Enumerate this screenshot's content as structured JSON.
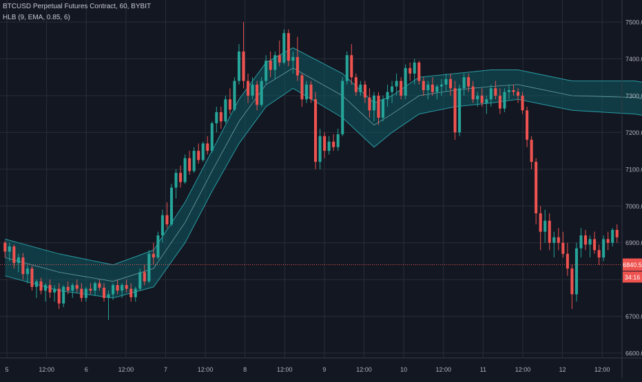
{
  "legend": {
    "symbol_line": "BTCUSD Perpetual Futures Contract, 60, BYBIT",
    "indicator_line": "HLB (9, EMA, 0.85, 6)"
  },
  "colors": {
    "background": "#131722",
    "grid": "#2a2e39",
    "up": "#26a69a",
    "down": "#ef5350",
    "band_fill": "#0e5a63",
    "band_line": "#2a9ca3",
    "mid_line": "#7fb9bd",
    "axis_text": "#b2b5be",
    "label_text": "#ffffff"
  },
  "chart_data": {
    "type": "candlestick",
    "title": "BTCUSD Perpetual Futures Contract, 60, BYBIT",
    "indicator": "HLB (9, EMA, 0.85, 6)",
    "timeframe": "60",
    "x_tick_labels": [
      "5",
      "12:00",
      "6",
      "12:00",
      "7",
      "12:00",
      "8",
      "12:00",
      "9",
      "12:00",
      "10",
      "12:00",
      "11",
      "12:00",
      "12",
      "12:00"
    ],
    "y_tick_labels": [
      "7500.0",
      "7400.0",
      "7300.0",
      "7200.0",
      "7100.0",
      "7000.0",
      "6900.0",
      "6800.0",
      "6700.0",
      "6600.0"
    ],
    "ylim": [
      6587,
      7560
    ],
    "grid": true,
    "last_price": "6840.5",
    "countdown": "34:16",
    "band_upper": [
      [
        0,
        6910
      ],
      [
        12,
        6870
      ],
      [
        24,
        6840
      ],
      [
        33,
        6880
      ],
      [
        40,
        7010
      ],
      [
        46,
        7150
      ],
      [
        52,
        7290
      ],
      [
        58,
        7390
      ],
      [
        64,
        7430
      ],
      [
        75,
        7360
      ],
      [
        82,
        7280
      ],
      [
        86,
        7300
      ],
      [
        92,
        7350
      ],
      [
        100,
        7360
      ],
      [
        108,
        7370
      ],
      [
        114,
        7370
      ],
      [
        126,
        7340
      ],
      [
        140,
        7340
      ],
      [
        150,
        7320
      ],
      [
        154,
        7270
      ],
      [
        164,
        7080
      ],
      [
        172,
        6960
      ],
      [
        180,
        6935
      ],
      [
        190,
        6930
      ],
      [
        200,
        6900
      ],
      [
        210,
        6900
      ],
      [
        221,
        6900
      ]
    ],
    "band_lower": [
      [
        0,
        6810
      ],
      [
        12,
        6770
      ],
      [
        24,
        6750
      ],
      [
        33,
        6780
      ],
      [
        40,
        6900
      ],
      [
        46,
        7040
      ],
      [
        52,
        7170
      ],
      [
        58,
        7270
      ],
      [
        64,
        7320
      ],
      [
        75,
        7240
      ],
      [
        82,
        7160
      ],
      [
        86,
        7200
      ],
      [
        92,
        7250
      ],
      [
        100,
        7270
      ],
      [
        108,
        7280
      ],
      [
        114,
        7290
      ],
      [
        126,
        7260
      ],
      [
        140,
        7250
      ],
      [
        150,
        7230
      ],
      [
        154,
        7170
      ],
      [
        164,
        6980
      ],
      [
        172,
        6860
      ],
      [
        180,
        6840
      ],
      [
        190,
        6840
      ],
      [
        200,
        6810
      ],
      [
        210,
        6810
      ],
      [
        221,
        6820
      ]
    ],
    "candles": [
      [
        6900,
        6905,
        6860,
        6876
      ],
      [
        6876,
        6900,
        6850,
        6890
      ],
      [
        6890,
        6895,
        6830,
        6845
      ],
      [
        6845,
        6870,
        6820,
        6860
      ],
      [
        6860,
        6872,
        6800,
        6815
      ],
      [
        6815,
        6840,
        6790,
        6830
      ],
      [
        6830,
        6838,
        6770,
        6780
      ],
      [
        6780,
        6800,
        6750,
        6795
      ],
      [
        6795,
        6805,
        6760,
        6770
      ],
      [
        6770,
        6790,
        6740,
        6785
      ],
      [
        6785,
        6800,
        6750,
        6765
      ],
      [
        6765,
        6785,
        6740,
        6775
      ],
      [
        6775,
        6790,
        6720,
        6735
      ],
      [
        6735,
        6785,
        6725,
        6780
      ],
      [
        6780,
        6795,
        6760,
        6770
      ],
      [
        6770,
        6790,
        6750,
        6785
      ],
      [
        6785,
        6800,
        6765,
        6775
      ],
      [
        6775,
        6790,
        6740,
        6750
      ],
      [
        6750,
        6780,
        6740,
        6775
      ],
      [
        6775,
        6790,
        6760,
        6770
      ],
      [
        6770,
        6795,
        6755,
        6790
      ],
      [
        6790,
        6800,
        6770,
        6778
      ],
      [
        6778,
        6790,
        6740,
        6750
      ],
      [
        6750,
        6770,
        6690,
        6760
      ],
      [
        6760,
        6790,
        6745,
        6785
      ],
      [
        6785,
        6800,
        6760,
        6770
      ],
      [
        6770,
        6790,
        6750,
        6785
      ],
      [
        6785,
        6800,
        6765,
        6775
      ],
      [
        6775,
        6790,
        6740,
        6752
      ],
      [
        6752,
        6780,
        6740,
        6775
      ],
      [
        6775,
        6830,
        6770,
        6820
      ],
      [
        6820,
        6840,
        6785,
        6795
      ],
      [
        6795,
        6880,
        6790,
        6870
      ],
      [
        6870,
        6900,
        6840,
        6860
      ],
      [
        6860,
        6930,
        6855,
        6920
      ],
      [
        6920,
        6990,
        6900,
        6975
      ],
      [
        6975,
        7010,
        6940,
        6950
      ],
      [
        6950,
        7060,
        6945,
        7050
      ],
      [
        7050,
        7100,
        7020,
        7090
      ],
      [
        7090,
        7110,
        7050,
        7065
      ],
      [
        7065,
        7140,
        7060,
        7130
      ],
      [
        7130,
        7150,
        7085,
        7095
      ],
      [
        7095,
        7160,
        7090,
        7150
      ],
      [
        7150,
        7170,
        7115,
        7125
      ],
      [
        7125,
        7175,
        7120,
        7170
      ],
      [
        7170,
        7190,
        7140,
        7150
      ],
      [
        7150,
        7230,
        7145,
        7225
      ],
      [
        7225,
        7270,
        7200,
        7255
      ],
      [
        7255,
        7270,
        7210,
        7230
      ],
      [
        7230,
        7300,
        7225,
        7290
      ],
      [
        7290,
        7320,
        7250,
        7262
      ],
      [
        7262,
        7350,
        7258,
        7340
      ],
      [
        7340,
        7440,
        7330,
        7420
      ],
      [
        7420,
        7500,
        7320,
        7340
      ],
      [
        7340,
        7360,
        7280,
        7300
      ],
      [
        7300,
        7350,
        7290,
        7330
      ],
      [
        7330,
        7340,
        7260,
        7275
      ],
      [
        7275,
        7350,
        7270,
        7340
      ],
      [
        7340,
        7410,
        7330,
        7395
      ],
      [
        7395,
        7420,
        7350,
        7370
      ],
      [
        7370,
        7420,
        7345,
        7410
      ],
      [
        7410,
        7450,
        7380,
        7390
      ],
      [
        7390,
        7480,
        7385,
        7470
      ],
      [
        7470,
        7480,
        7380,
        7395
      ],
      [
        7395,
        7420,
        7360,
        7405
      ],
      [
        7405,
        7460,
        7340,
        7355
      ],
      [
        7355,
        7360,
        7270,
        7290
      ],
      [
        7290,
        7340,
        7280,
        7330
      ],
      [
        7330,
        7340,
        7280,
        7290
      ],
      [
        7290,
        7310,
        7100,
        7120
      ],
      [
        7120,
        7210,
        7100,
        7190
      ],
      [
        7190,
        7200,
        7130,
        7150
      ],
      [
        7150,
        7190,
        7140,
        7175
      ],
      [
        7175,
        7195,
        7150,
        7160
      ],
      [
        7160,
        7210,
        7150,
        7195
      ],
      [
        7195,
        7350,
        7190,
        7340
      ],
      [
        7340,
        7420,
        7330,
        7410
      ],
      [
        7410,
        7440,
        7330,
        7350
      ],
      [
        7350,
        7360,
        7300,
        7310
      ],
      [
        7310,
        7340,
        7300,
        7330
      ],
      [
        7330,
        7340,
        7280,
        7295
      ],
      [
        7295,
        7320,
        7240,
        7260
      ],
      [
        7260,
        7310,
        7230,
        7300
      ],
      [
        7300,
        7310,
        7220,
        7240
      ],
      [
        7240,
        7300,
        7230,
        7290
      ],
      [
        7290,
        7330,
        7270,
        7310
      ],
      [
        7310,
        7340,
        7280,
        7325
      ],
      [
        7325,
        7360,
        7300,
        7340
      ],
      [
        7340,
        7350,
        7290,
        7300
      ],
      [
        7300,
        7385,
        7290,
        7375
      ],
      [
        7375,
        7390,
        7340,
        7360
      ],
      [
        7360,
        7400,
        7330,
        7390
      ],
      [
        7390,
        7395,
        7330,
        7340
      ],
      [
        7340,
        7350,
        7300,
        7315
      ],
      [
        7315,
        7340,
        7290,
        7330
      ],
      [
        7330,
        7350,
        7300,
        7310
      ],
      [
        7310,
        7330,
        7290,
        7325
      ],
      [
        7325,
        7345,
        7300,
        7330
      ],
      [
        7330,
        7360,
        7310,
        7345
      ],
      [
        7345,
        7360,
        7300,
        7320
      ],
      [
        7320,
        7340,
        7180,
        7200
      ],
      [
        7200,
        7330,
        7190,
        7320
      ],
      [
        7320,
        7360,
        7300,
        7350
      ],
      [
        7350,
        7360,
        7310,
        7325
      ],
      [
        7325,
        7340,
        7280,
        7290
      ],
      [
        7290,
        7310,
        7270,
        7300
      ],
      [
        7300,
        7320,
        7270,
        7280
      ],
      [
        7280,
        7300,
        7250,
        7290
      ],
      [
        7290,
        7330,
        7270,
        7320
      ],
      [
        7320,
        7340,
        7290,
        7300
      ],
      [
        7300,
        7320,
        7250,
        7265
      ],
      [
        7265,
        7320,
        7255,
        7310
      ],
      [
        7310,
        7330,
        7290,
        7315
      ],
      [
        7315,
        7330,
        7300,
        7310
      ],
      [
        7310,
        7320,
        7280,
        7300
      ],
      [
        7300,
        7310,
        7250,
        7260
      ],
      [
        7260,
        7270,
        7160,
        7180
      ],
      [
        7180,
        7190,
        7100,
        7120
      ],
      [
        7120,
        7130,
        6950,
        6980
      ],
      [
        6980,
        7000,
        6880,
        6930
      ],
      [
        6930,
        6990,
        6900,
        6960
      ],
      [
        6960,
        6980,
        6880,
        6900
      ],
      [
        6900,
        6930,
        6860,
        6915
      ],
      [
        6915,
        6940,
        6880,
        6900
      ],
      [
        6900,
        6930,
        6860,
        6870
      ],
      [
        6870,
        6900,
        6810,
        6830
      ],
      [
        6830,
        6840,
        6720,
        6760
      ],
      [
        6760,
        6900,
        6740,
        6885
      ],
      [
        6885,
        6940,
        6860,
        6920
      ],
      [
        6920,
        6935,
        6880,
        6895
      ],
      [
        6895,
        6920,
        6860,
        6910
      ],
      [
        6910,
        6930,
        6870,
        6880
      ],
      [
        6880,
        6895,
        6840,
        6860
      ],
      [
        6860,
        6920,
        6850,
        6910
      ],
      [
        6910,
        6930,
        6880,
        6900
      ],
      [
        6900,
        6940,
        6890,
        6935
      ],
      [
        6935,
        6950,
        6900,
        6915
      ]
    ]
  }
}
